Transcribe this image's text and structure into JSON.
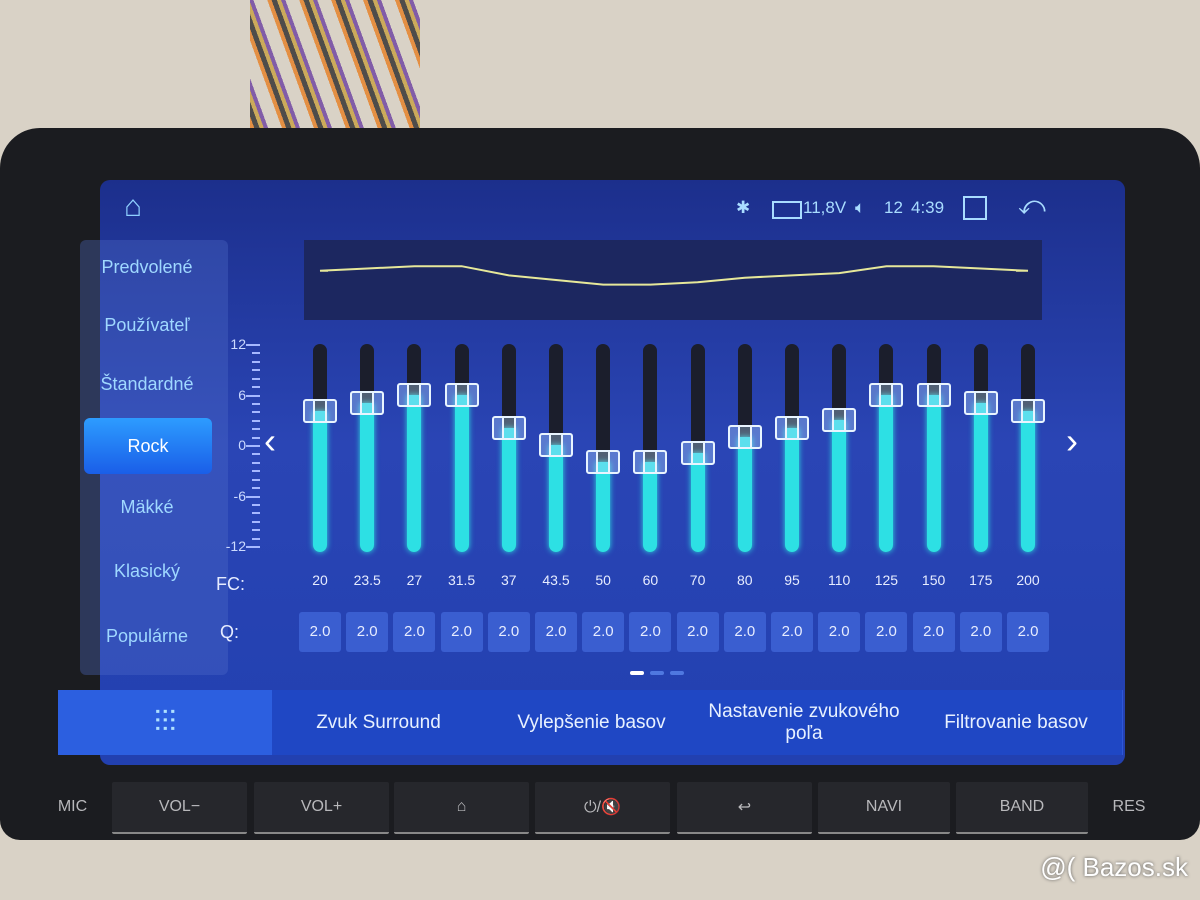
{
  "status_bar": {
    "home_icon": "home-icon",
    "bluetooth_icon": "bluetooth-icon",
    "battery_icon": "battery-icon",
    "voltage": "11,8V",
    "volume_icon": "speaker-icon",
    "volume": "12",
    "time": "4:39",
    "windows_icon": "multi-window-icon",
    "back_icon": "back-arrow-icon"
  },
  "presets": [
    {
      "label": "Predvolené",
      "active": false
    },
    {
      "label": "Používateľ",
      "active": false
    },
    {
      "label": "Štandardné",
      "active": false
    },
    {
      "label": "Rock",
      "active": true
    },
    {
      "label": "Mäkké",
      "active": false
    },
    {
      "label": "Klasický",
      "active": false
    },
    {
      "label": "Populárne",
      "active": false
    }
  ],
  "scale_labels": [
    "12",
    "6",
    "0",
    "-6",
    "-12"
  ],
  "scale_range": [
    -12,
    12
  ],
  "fc_label": "FC:",
  "q_label": "Q:",
  "bands": [
    {
      "fc": "20",
      "q": "2.0",
      "gain": 4
    },
    {
      "fc": "23.5",
      "q": "2.0",
      "gain": 5
    },
    {
      "fc": "27",
      "q": "2.0",
      "gain": 6
    },
    {
      "fc": "31.5",
      "q": "2.0",
      "gain": 6
    },
    {
      "fc": "37",
      "q": "2.0",
      "gain": 2
    },
    {
      "fc": "43.5",
      "q": "2.0",
      "gain": 0
    },
    {
      "fc": "50",
      "q": "2.0",
      "gain": -2
    },
    {
      "fc": "60",
      "q": "2.0",
      "gain": -2
    },
    {
      "fc": "70",
      "q": "2.0",
      "gain": -1
    },
    {
      "fc": "80",
      "q": "2.0",
      "gain": 1
    },
    {
      "fc": "95",
      "q": "2.0",
      "gain": 2
    },
    {
      "fc": "110",
      "q": "2.0",
      "gain": 3
    },
    {
      "fc": "125",
      "q": "2.0",
      "gain": 6
    },
    {
      "fc": "150",
      "q": "2.0",
      "gain": 6
    },
    {
      "fc": "175",
      "q": "2.0",
      "gain": 5
    },
    {
      "fc": "200",
      "q": "2.0",
      "gain": 4
    }
  ],
  "page_indicator": {
    "pages": 3,
    "current": 1
  },
  "bottom_tabs": [
    {
      "label": "",
      "icon": "equalizer-sliders-icon",
      "active": true
    },
    {
      "label": "Zvuk Surround"
    },
    {
      "label": "Vylepšenie basov"
    },
    {
      "label": "Nastavenie zvukového poľa"
    },
    {
      "label": "Filtrovanie basov"
    }
  ],
  "hardware_buttons": [
    "MIC",
    "VOL−",
    "VOL+",
    "⌂",
    "⏻/🔇",
    "↩",
    "NAVI",
    "BAND",
    "RES"
  ],
  "watermark": "@( Bazos.sk",
  "colors": {
    "accent": "#2de0e4",
    "active_preset": "#2d9cff",
    "screen": "#2a45b5"
  }
}
